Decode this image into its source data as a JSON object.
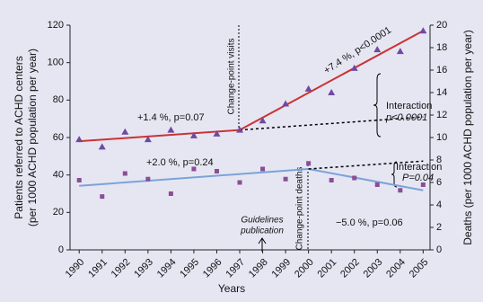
{
  "chart_data": {
    "type": "scatter",
    "xlabel": "Years",
    "ylabel": [
      "Patients referred to ACHD centers",
      "(per 1000 ACHD population per year)"
    ],
    "y2label": "Deaths (per 1000 ACHD population per year)",
    "x": [
      1990,
      1991,
      1992,
      1993,
      1994,
      1995,
      1996,
      1997,
      1998,
      1999,
      2000,
      2001,
      2002,
      2003,
      2004,
      2005
    ],
    "xlim": [
      1989.6,
      2005.3
    ],
    "xticks": [
      1990,
      1991,
      1992,
      1993,
      1994,
      1995,
      1996,
      1997,
      1998,
      1999,
      2000,
      2001,
      2002,
      2003,
      2004,
      2005
    ],
    "ylim": [
      0,
      120
    ],
    "yticks": [
      0,
      20,
      40,
      60,
      80,
      100,
      120
    ],
    "y2lim": [
      0,
      20
    ],
    "y2ticks": [
      0,
      2,
      4,
      6,
      8,
      10,
      12,
      14,
      16,
      18,
      20
    ],
    "series": [
      {
        "marker": "triangle",
        "color": "#6e4aa0",
        "values": [
          59,
          55,
          63,
          59,
          64,
          61,
          62,
          64,
          69,
          78,
          86,
          84,
          97,
          107,
          106,
          117
        ]
      },
      {
        "marker": "square",
        "color": "#8a4d96",
        "axis": "y2",
        "values": [
          6.2,
          4.75,
          6.8,
          6.3,
          5.0,
          7.2,
          7.0,
          6.0,
          7.2,
          6.3,
          7.7,
          6.2,
          6.4,
          5.8,
          5.3,
          5.8
        ]
      }
    ],
    "trend_lines": [
      {
        "color": "#cc3333",
        "x": [
          1990,
          1997
        ],
        "values": [
          58,
          64
        ]
      },
      {
        "color": "#cc3333",
        "x": [
          1997,
          2005
        ],
        "values": [
          64,
          117
        ]
      },
      {
        "color": "#000000",
        "dash": true,
        "x": [
          1997,
          2005
        ],
        "values": [
          64,
          71
        ]
      },
      {
        "color": "#7ba3d8",
        "axis": "y2",
        "x": [
          1990,
          2000
        ],
        "values": [
          5.7,
          7.2
        ]
      },
      {
        "color": "#7ba3d8",
        "axis": "y2",
        "x": [
          2000,
          2005
        ],
        "values": [
          7.2,
          5.3
        ]
      },
      {
        "color": "#000000",
        "dash": true,
        "axis": "y2",
        "x": [
          2000,
          2005
        ],
        "values": [
          7.2,
          7.9
        ]
      }
    ],
    "annotations": {
      "visits_before": "+1.4 %, p=0.07",
      "visits_after": "+7.4 %, p<0.0001",
      "visits_interaction": [
        "Interaction",
        "p<0.0001"
      ],
      "deaths_before": "+2.0 %, p=0.24",
      "deaths_after": "−5.0 %, p=0.06",
      "deaths_interaction": [
        "Interaction",
        "P=0.04"
      ],
      "change_point_visits": "Change-point visits",
      "change_point_deaths": "Change-point deaths",
      "guidelines": [
        "Guidelines",
        "publication"
      ]
    }
  }
}
